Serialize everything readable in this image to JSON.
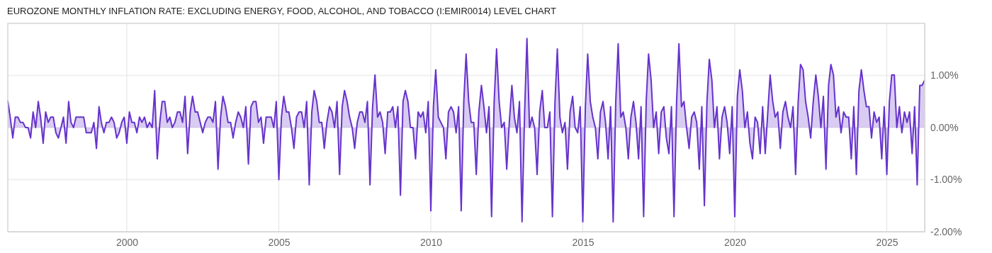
{
  "chart_data": {
    "type": "area",
    "title": "EUROZONE MONTHLY INFLATION RATE: EXCLUDING ENERGY, FOOD, ALCOHOL, AND TOBACCO (I:EMIR0014) LEVEL CHART",
    "x": [
      "1996-02",
      "1996-03",
      "1996-04",
      "1996-05",
      "1996-06",
      "1996-07",
      "1996-08",
      "1996-09",
      "1996-10",
      "1996-11",
      "1996-12",
      "1997-01",
      "1997-02",
      "1997-03",
      "1997-04",
      "1997-05",
      "1997-06",
      "1997-07",
      "1997-08",
      "1997-09",
      "1997-10",
      "1997-11",
      "1997-12",
      "1998-01",
      "1998-02",
      "1998-03",
      "1998-04",
      "1998-05",
      "1998-06",
      "1998-07",
      "1998-08",
      "1998-09",
      "1998-10",
      "1998-11",
      "1998-12",
      "1999-01",
      "1999-02",
      "1999-03",
      "1999-04",
      "1999-05",
      "1999-06",
      "1999-07",
      "1999-08",
      "1999-09",
      "1999-10",
      "1999-11",
      "1999-12",
      "2000-01",
      "2000-02",
      "2000-03",
      "2000-04",
      "2000-05",
      "2000-06",
      "2000-07",
      "2000-08",
      "2000-09",
      "2000-10",
      "2000-11",
      "2000-12",
      "2001-01",
      "2001-02",
      "2001-03",
      "2001-04",
      "2001-05",
      "2001-06",
      "2001-07",
      "2001-08",
      "2001-09",
      "2001-10",
      "2001-11",
      "2001-12",
      "2002-01",
      "2002-02",
      "2002-03",
      "2002-04",
      "2002-05",
      "2002-06",
      "2002-07",
      "2002-08",
      "2002-09",
      "2002-10",
      "2002-11",
      "2002-12",
      "2003-01",
      "2003-02",
      "2003-03",
      "2003-04",
      "2003-05",
      "2003-06",
      "2003-07",
      "2003-08",
      "2003-09",
      "2003-10",
      "2003-11",
      "2003-12",
      "2004-01",
      "2004-02",
      "2004-03",
      "2004-04",
      "2004-05",
      "2004-06",
      "2004-07",
      "2004-08",
      "2004-09",
      "2004-10",
      "2004-11",
      "2004-12",
      "2005-01",
      "2005-02",
      "2005-03",
      "2005-04",
      "2005-05",
      "2005-06",
      "2005-07",
      "2005-08",
      "2005-09",
      "2005-10",
      "2005-11",
      "2005-12",
      "2006-01",
      "2006-02",
      "2006-03",
      "2006-04",
      "2006-05",
      "2006-06",
      "2006-07",
      "2006-08",
      "2006-09",
      "2006-10",
      "2006-11",
      "2006-12",
      "2007-01",
      "2007-02",
      "2007-03",
      "2007-04",
      "2007-05",
      "2007-06",
      "2007-07",
      "2007-08",
      "2007-09",
      "2007-10",
      "2007-11",
      "2007-12",
      "2008-01",
      "2008-02",
      "2008-03",
      "2008-04",
      "2008-05",
      "2008-06",
      "2008-07",
      "2008-08",
      "2008-09",
      "2008-10",
      "2008-11",
      "2008-12",
      "2009-01",
      "2009-02",
      "2009-03",
      "2009-04",
      "2009-05",
      "2009-06",
      "2009-07",
      "2009-08",
      "2009-09",
      "2009-10",
      "2009-11",
      "2009-12",
      "2010-01",
      "2010-02",
      "2010-03",
      "2010-04",
      "2010-05",
      "2010-06",
      "2010-07",
      "2010-08",
      "2010-09",
      "2010-10",
      "2010-11",
      "2010-12",
      "2011-01",
      "2011-02",
      "2011-03",
      "2011-04",
      "2011-05",
      "2011-06",
      "2011-07",
      "2011-08",
      "2011-09",
      "2011-10",
      "2011-11",
      "2011-12",
      "2012-01",
      "2012-02",
      "2012-03",
      "2012-04",
      "2012-05",
      "2012-06",
      "2012-07",
      "2012-08",
      "2012-09",
      "2012-10",
      "2012-11",
      "2012-12",
      "2013-01",
      "2013-02",
      "2013-03",
      "2013-04",
      "2013-05",
      "2013-06",
      "2013-07",
      "2013-08",
      "2013-09",
      "2013-10",
      "2013-11",
      "2013-12",
      "2014-01",
      "2014-02",
      "2014-03",
      "2014-04",
      "2014-05",
      "2014-06",
      "2014-07",
      "2014-08",
      "2014-09",
      "2014-10",
      "2014-11",
      "2014-12",
      "2015-01",
      "2015-02",
      "2015-03",
      "2015-04",
      "2015-05",
      "2015-06",
      "2015-07",
      "2015-08",
      "2015-09",
      "2015-10",
      "2015-11",
      "2015-12",
      "2016-01",
      "2016-02",
      "2016-03",
      "2016-04",
      "2016-05",
      "2016-06",
      "2016-07",
      "2016-08",
      "2016-09",
      "2016-10",
      "2016-11",
      "2016-12",
      "2017-01",
      "2017-02",
      "2017-03",
      "2017-04",
      "2017-05",
      "2017-06",
      "2017-07",
      "2017-08",
      "2017-09",
      "2017-10",
      "2017-11",
      "2017-12",
      "2018-01",
      "2018-02",
      "2018-03",
      "2018-04",
      "2018-05",
      "2018-06",
      "2018-07",
      "2018-08",
      "2018-09",
      "2018-10",
      "2018-11",
      "2018-12",
      "2019-01",
      "2019-02",
      "2019-03",
      "2019-04",
      "2019-05",
      "2019-06",
      "2019-07",
      "2019-08",
      "2019-09",
      "2019-10",
      "2019-11",
      "2019-12",
      "2020-01",
      "2020-02",
      "2020-03",
      "2020-04",
      "2020-05",
      "2020-06",
      "2020-07",
      "2020-08",
      "2020-09",
      "2020-10",
      "2020-11",
      "2020-12",
      "2021-01",
      "2021-02",
      "2021-03",
      "2021-04",
      "2021-05",
      "2021-06",
      "2021-07",
      "2021-08",
      "2021-09",
      "2021-10",
      "2021-11",
      "2021-12",
      "2022-01",
      "2022-02",
      "2022-03",
      "2022-04",
      "2022-05",
      "2022-06",
      "2022-07",
      "2022-08",
      "2022-09",
      "2022-10",
      "2022-11",
      "2022-12",
      "2023-01",
      "2023-02",
      "2023-03",
      "2023-04",
      "2023-05",
      "2023-06",
      "2023-07",
      "2023-08",
      "2023-09",
      "2023-10",
      "2023-11",
      "2023-12",
      "2024-01",
      "2024-02",
      "2024-03",
      "2024-04",
      "2024-05",
      "2024-06",
      "2024-07",
      "2024-08",
      "2024-09",
      "2024-10",
      "2024-11",
      "2024-12",
      "2025-01",
      "2025-02",
      "2025-03",
      "2025-04",
      "2025-05",
      "2025-06",
      "2025-07",
      "2025-08",
      "2025-09",
      "2025-10",
      "2025-11",
      "2025-12",
      "2026-01",
      "2026-02",
      "2026-03",
      "2026-04"
    ],
    "series": [
      {
        "color": "#6633cc",
        "values": [
          0.51,
          0.2,
          -0.2,
          0.2,
          0.2,
          0.1,
          0.1,
          0,
          0,
          -0.2,
          0.3,
          0,
          0.5,
          0.2,
          -0.3,
          0.3,
          0.1,
          0.2,
          0.2,
          -0.1,
          -0.2,
          0,
          0.2,
          -0.3,
          0.5,
          0.1,
          0,
          0.2,
          0.2,
          0.2,
          0.2,
          -0.1,
          -0.1,
          -0.1,
          0.1,
          -0.4,
          0.4,
          0.1,
          -0.1,
          0.1,
          0.1,
          0.2,
          0.1,
          -0.2,
          -0.1,
          0.1,
          0.2,
          -0.3,
          0.3,
          0.1,
          0.1,
          -0.1,
          0.2,
          0.1,
          0.2,
          0,
          0.1,
          0,
          0.71,
          -0.6,
          0.1,
          0.5,
          0.5,
          0.1,
          0.2,
          0,
          0.1,
          0.3,
          0.3,
          0.1,
          0.6,
          -0.5,
          0.3,
          0.6,
          0.3,
          0.3,
          0.1,
          -0.1,
          0.1,
          0.2,
          0.2,
          0.1,
          0.5,
          -0.8,
          0.2,
          0.6,
          0.4,
          0.1,
          0.1,
          -0.2,
          0.1,
          0.3,
          0.2,
          0,
          0.4,
          -0.7,
          0.4,
          0.5,
          0.5,
          0.1,
          0.2,
          -0.3,
          0.2,
          0.2,
          0.2,
          0,
          0.5,
          -1.0,
          0.2,
          0.6,
          0.3,
          0.3,
          0,
          -0.4,
          0.2,
          0.3,
          0.3,
          0,
          0.5,
          -1.1,
          0.3,
          0.71,
          0.5,
          0.1,
          0.1,
          -0.4,
          0.1,
          0.4,
          0.3,
          0,
          0.5,
          -0.9,
          0.4,
          0.71,
          0.5,
          0.2,
          0,
          -0.4,
          0.1,
          0.3,
          0.3,
          0.1,
          0.5,
          -1.1,
          0.4,
          1.01,
          0.2,
          0.3,
          0.1,
          -0.5,
          0.3,
          0.3,
          0.4,
          0,
          0.4,
          -1.3,
          0.5,
          0.71,
          0.5,
          0,
          0,
          -0.6,
          0.3,
          0.2,
          0.3,
          -0.1,
          0.5,
          -1.6,
          0.4,
          1.11,
          0.2,
          0.1,
          0,
          -0.6,
          0.3,
          0.4,
          0.3,
          -0.1,
          0.4,
          -1.6,
          0.5,
          1.41,
          0.5,
          0.1,
          0.1,
          -0.9,
          0.3,
          0.81,
          0.4,
          -0.1,
          0.4,
          -1.71,
          0.5,
          1.51,
          0.5,
          0,
          0.1,
          -0.8,
          0.1,
          0.81,
          0.2,
          -0.1,
          0.5,
          -1.81,
          0.3,
          1.71,
          0,
          0.2,
          0,
          -0.9,
          0.3,
          0.71,
          0,
          0,
          0.3,
          -1.71,
          0.5,
          1.51,
          0.2,
          -0.1,
          0.1,
          -0.8,
          0.3,
          0.6,
          0,
          -0.1,
          0.4,
          -1.81,
          0.4,
          1.41,
          0.5,
          0.2,
          0,
          -0.6,
          0.3,
          0.5,
          0.1,
          -0.6,
          0.4,
          -1.81,
          0.5,
          1.61,
          0.2,
          0.3,
          0,
          -0.6,
          0.2,
          0.5,
          0.1,
          -0.6,
          0.4,
          -1.71,
          0.5,
          1.41,
          0.91,
          0,
          0.3,
          -0.5,
          0.3,
          0.4,
          -0.2,
          -0.5,
          0.4,
          -1.71,
          0.5,
          1.61,
          0.4,
          0.5,
          0,
          -0.4,
          0.2,
          0.3,
          0.1,
          -0.8,
          0.4,
          -1.5,
          0.5,
          1.31,
          0.91,
          0,
          0.4,
          -0.6,
          0.2,
          0.4,
          0.1,
          -0.5,
          0.4,
          -1.71,
          0.6,
          1.11,
          0.71,
          0,
          0.3,
          -0.3,
          -0.6,
          0.2,
          0.1,
          -0.5,
          0.4,
          -0.5,
          0.3,
          1.01,
          0.5,
          0.2,
          0.3,
          -0.4,
          0.3,
          0.5,
          0.2,
          0,
          0.4,
          -0.9,
          0.5,
          1.21,
          1.11,
          0.5,
          0.2,
          -0.2,
          0.5,
          1.01,
          0.6,
          0,
          0.6,
          -0.8,
          0.81,
          1.21,
          1.01,
          0.2,
          0.4,
          -0.1,
          0.3,
          0.2,
          0.2,
          -0.6,
          0.4,
          -0.9,
          0.71,
          1.11,
          0.71,
          0.4,
          0.4,
          -0.2,
          0.3,
          0.1,
          0.2,
          -0.6,
          0.4,
          -0.9,
          0.5,
          1.01,
          1.01,
          0,
          0.4,
          -0.1,
          0.3,
          0.1,
          0.3,
          -0.5,
          0.4,
          -1.1,
          0.81,
          0.81,
          0.91
        ]
      }
    ],
    "xlim": [
      "1996-02",
      "2026-04"
    ],
    "xticks": [
      "2000",
      "2005",
      "2010",
      "2015",
      "2020",
      "2025"
    ],
    "ylim": [
      -2,
      2
    ],
    "yticks": [
      {
        "value": 1,
        "label": "1.00%"
      },
      {
        "value": 0,
        "label": "0.00%"
      },
      {
        "value": -1,
        "label": "-1.00%"
      },
      {
        "value": -2,
        "label": "-2.00%"
      }
    ],
    "grid": true
  }
}
